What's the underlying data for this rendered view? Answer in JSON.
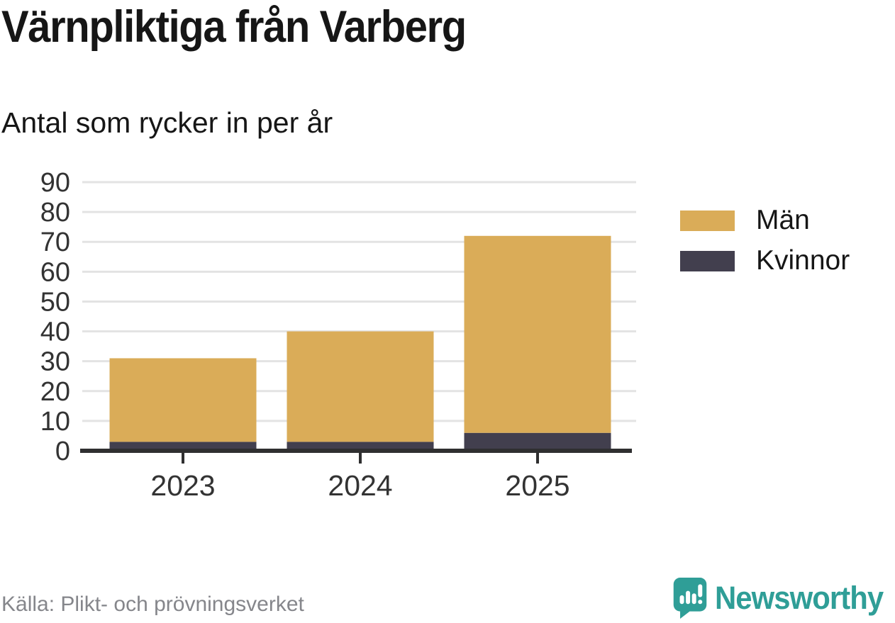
{
  "header": {
    "title": "Värnpliktiga från Varberg",
    "subtitle": "Antal som rycker in per år"
  },
  "chart_data": {
    "type": "bar",
    "stacked": true,
    "title": "Värnpliktiga från Varberg",
    "subtitle": "Antal som rycker in per år",
    "categories": [
      "2023",
      "2024",
      "2025"
    ],
    "series": [
      {
        "name": "Män",
        "color_key": "men",
        "values": [
          28,
          37,
          66
        ]
      },
      {
        "name": "Kvinnor",
        "color_key": "women",
        "values": [
          3,
          3,
          6
        ]
      }
    ],
    "stack_bottom_series": "Kvinnor",
    "totals": [
      31,
      40,
      72
    ],
    "xlabel": "",
    "ylabel": "",
    "ylim": [
      0,
      90
    ],
    "yticks": [
      0,
      10,
      20,
      30,
      40,
      50,
      60,
      70,
      80,
      90
    ],
    "grid": true,
    "legend_position": "right"
  },
  "legend": {
    "items": [
      {
        "label": "Män"
      },
      {
        "label": "Kvinnor"
      }
    ]
  },
  "footer": {
    "source": "Källa: Plikt- och prövningsverket",
    "brand": "Newsworthy",
    "brand_icon": "bar-chart-speech-bubble-icon"
  },
  "colors": {
    "men": "#DAAC58",
    "women": "#423F4E",
    "grid": "#E3E3E3",
    "axis": "#2F2F30",
    "axis_text": "#333333",
    "teal": "#2F9E97",
    "title_text": "#161616",
    "muted_text": "#85868B"
  }
}
